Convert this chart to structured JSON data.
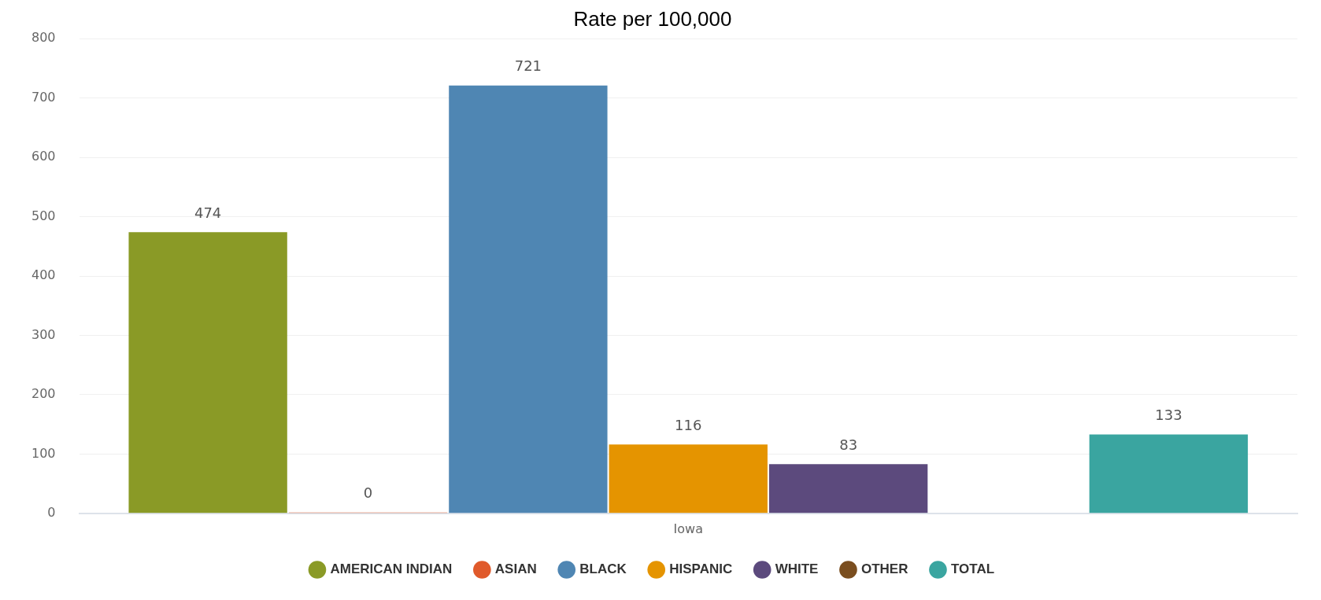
{
  "chart_data": {
    "type": "bar",
    "title": "Rate per 100,000",
    "categories": [
      "Iowa"
    ],
    "series": [
      {
        "name": "AMERICAN INDIAN",
        "color": "#8a9a26",
        "values": [
          474
        ]
      },
      {
        "name": "ASIAN",
        "color": "#e05a2b",
        "values": [
          0
        ]
      },
      {
        "name": "BLACK",
        "color": "#4f86b3",
        "values": [
          721
        ]
      },
      {
        "name": "HISPANIC",
        "color": "#e59400",
        "values": [
          116
        ]
      },
      {
        "name": "WHITE",
        "color": "#5c4a7d",
        "values": [
          83
        ]
      },
      {
        "name": "OTHER",
        "color": "#7a4e1f",
        "values": [
          null
        ]
      },
      {
        "name": "TOTAL",
        "color": "#3aa5a0",
        "values": [
          133
        ]
      }
    ],
    "ylim": [
      0,
      800
    ],
    "yticks": [
      0,
      100,
      200,
      300,
      400,
      500,
      600,
      700,
      800
    ],
    "grid": "y",
    "legend": "bottom",
    "data_labels": true
  }
}
